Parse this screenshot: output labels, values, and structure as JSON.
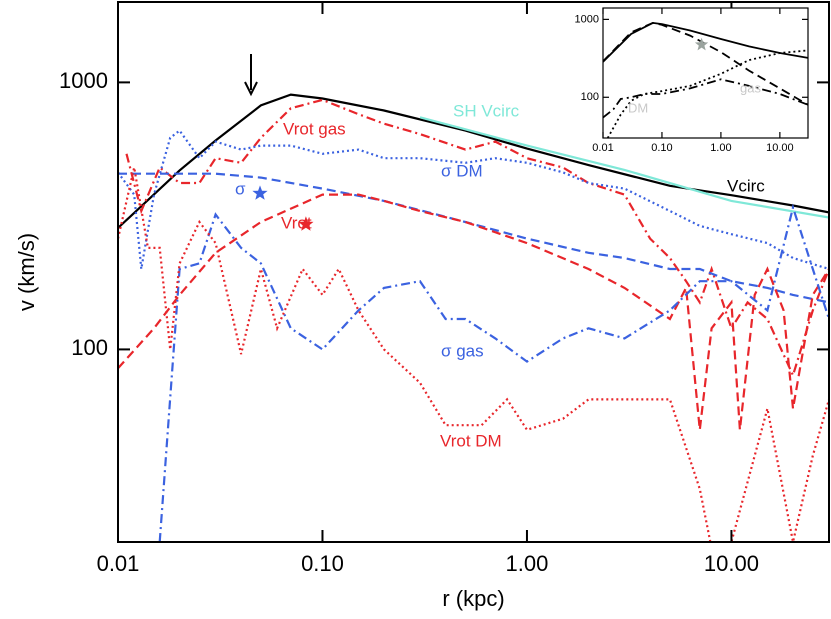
{
  "chart_data": [
    {
      "type": "line",
      "xlabel": "r (kpc)",
      "ylabel": "v (km/s)",
      "xlog": true,
      "ylog": true,
      "xlim": [
        0.01,
        30
      ],
      "ylim": [
        19,
        2000
      ],
      "xticks": [
        {
          "value": 0.01,
          "label": "0.01"
        },
        {
          "value": 0.1,
          "label": "0.10"
        },
        {
          "value": 1,
          "label": "1.00"
        },
        {
          "value": 10,
          "label": "10.00"
        }
      ],
      "yticks": [
        100,
        1000
      ],
      "series": [
        {
          "name": "Vcirc",
          "color": "#000000",
          "dash": "solid",
          "x": [
            0.01,
            0.02,
            0.03,
            0.05,
            0.07,
            0.1,
            0.2,
            0.5,
            1,
            2,
            5,
            10,
            20,
            30
          ],
          "values": [
            285,
            468,
            606,
            820,
            900,
            870,
            785,
            660,
            565,
            490,
            410,
            378,
            346,
            326
          ]
        },
        {
          "name": "SH Vcirc",
          "color": "#7fe8d8",
          "dash": "solid",
          "x": [
            0.3,
            1,
            3,
            10,
            30
          ],
          "values": [
            740,
            580,
            470,
            360,
            312
          ]
        },
        {
          "name": "Vrot gas",
          "color": "#e8262b",
          "dash": "dashdot",
          "x": [
            0.011,
            0.013,
            0.016,
            0.02,
            0.025,
            0.03,
            0.04,
            0.05,
            0.07,
            0.1,
            0.15,
            0.2,
            0.3,
            0.5,
            0.7,
            1,
            1.5,
            2,
            3,
            4,
            5,
            6,
            7,
            8,
            10,
            12,
            15,
            20,
            25,
            30
          ],
          "values": [
            540,
            330,
            480,
            420,
            420,
            520,
            500,
            620,
            800,
            860,
            760,
            700,
            640,
            560,
            600,
            520,
            480,
            420,
            380,
            260,
            220,
            180,
            150,
            200,
            120,
            150,
            130,
            80,
            140,
            200
          ]
        },
        {
          "name": "σ DM",
          "color": "#3b62e0",
          "dash": "dot",
          "x": [
            0.01,
            0.012,
            0.013,
            0.015,
            0.018,
            0.02,
            0.025,
            0.03,
            0.04,
            0.05,
            0.07,
            0.1,
            0.15,
            0.2,
            0.3,
            0.5,
            0.7,
            1,
            1.5,
            2,
            3,
            5,
            7,
            10,
            15,
            20,
            30
          ],
          "values": [
            460,
            380,
            200,
            380,
            620,
            660,
            520,
            600,
            560,
            580,
            580,
            540,
            560,
            520,
            520,
            500,
            520,
            500,
            460,
            420,
            400,
            330,
            290,
            270,
            250,
            220,
            200
          ]
        },
        {
          "name": "σ",
          "color": "#3b62e0",
          "dash": "dash",
          "x": [
            0.01,
            0.03,
            0.05,
            0.1,
            0.2,
            0.5,
            1,
            2,
            3,
            5,
            7,
            10,
            15,
            20,
            30
          ],
          "values": [
            455,
            455,
            440,
            400,
            360,
            300,
            260,
            230,
            220,
            200,
            200,
            180,
            170,
            160,
            150
          ]
        },
        {
          "name": "Vrot",
          "color": "#e8262b",
          "dash": "dash",
          "x": [
            0.01,
            0.015,
            0.02,
            0.03,
            0.05,
            0.1,
            0.15,
            0.2,
            0.3,
            0.5,
            1,
            2,
            3,
            5,
            6,
            7,
            8,
            10,
            11,
            13,
            15,
            18,
            20,
            25,
            30
          ],
          "values": [
            85,
            120,
            160,
            230,
            300,
            380,
            380,
            360,
            330,
            300,
            250,
            200,
            170,
            130,
            170,
            50,
            120,
            150,
            50,
            160,
            200,
            140,
            60,
            160,
            200
          ]
        },
        {
          "name": "σ gas",
          "color": "#3b62e0",
          "dash": "dashdot",
          "x": [
            0.016,
            0.02,
            0.025,
            0.03,
            0.04,
            0.05,
            0.07,
            0.1,
            0.15,
            0.2,
            0.3,
            0.4,
            0.5,
            0.7,
            1,
            1.5,
            2,
            3,
            5,
            7,
            10,
            15,
            20,
            25,
            30
          ],
          "values": [
            19,
            200,
            210,
            320,
            240,
            210,
            120,
            100,
            140,
            170,
            180,
            130,
            130,
            110,
            90,
            110,
            120,
            110,
            140,
            180,
            180,
            140,
            340,
            200,
            130
          ]
        },
        {
          "name": "Vrot DM",
          "color": "#e8262b",
          "dash": "dot",
          "x": [
            0.01,
            0.012,
            0.014,
            0.016,
            0.018,
            0.02,
            0.025,
            0.03,
            0.04,
            0.05,
            0.06,
            0.08,
            0.1,
            0.12,
            0.15,
            0.2,
            0.3,
            0.4,
            0.6,
            0.8,
            1,
            1.5,
            2,
            5,
            7,
            8,
            10,
            15,
            20,
            25,
            30
          ],
          "values": [
            260,
            480,
            240,
            240,
            100,
            210,
            300,
            250,
            96,
            200,
            120,
            200,
            160,
            200,
            140,
            100,
            75,
            52,
            52,
            65,
            50,
            55,
            65,
            65,
            30,
            18,
            19,
            60,
            19,
            40,
            65
          ]
        }
      ],
      "points": [
        {
          "name": "σ",
          "x": 0.0495,
          "y": 384,
          "color": "#3b62e0"
        },
        {
          "name": "Vrot",
          "x": 0.083,
          "y": 294,
          "color": "#e8262b"
        }
      ]
    },
    {
      "type": "line",
      "xlog": true,
      "ylog": true,
      "xlim": [
        0.01,
        30
      ],
      "ylim": [
        30,
        1400
      ],
      "xticks": [
        {
          "value": 0.01,
          "label": "0.01"
        },
        {
          "value": 0.1,
          "label": "0.10"
        },
        {
          "value": 1,
          "label": "1.00"
        },
        {
          "value": 10,
          "label": "10.00"
        }
      ],
      "yticks": [
        100,
        1000
      ],
      "series": [
        {
          "color": "#000000",
          "dash": "solid",
          "x": [
            0.01,
            0.03,
            0.07,
            0.1,
            0.3,
            1,
            3,
            10,
            30
          ],
          "values": [
            285,
            650,
            900,
            870,
            720,
            560,
            450,
            370,
            320
          ]
        },
        {
          "color": "#000000",
          "dash": "dash",
          "x": [
            0.01,
            0.03,
            0.07,
            0.1,
            0.3,
            1,
            3,
            10,
            30
          ],
          "values": [
            290,
            680,
            900,
            850,
            620,
            380,
            220,
            130,
            80
          ]
        },
        {
          "name": "gas",
          "color": "#000000",
          "dash": "dashdot",
          "x": [
            0.01,
            0.015,
            0.02,
            0.03,
            0.05,
            0.1,
            0.3,
            1,
            3,
            10,
            20,
            30
          ],
          "values": [
            55,
            70,
            95,
            100,
            110,
            110,
            130,
            170,
            140,
            110,
            90,
            80
          ]
        },
        {
          "name": "DM",
          "color": "#000000",
          "dash": "dot",
          "x": [
            0.012,
            0.02,
            0.03,
            0.05,
            0.1,
            0.3,
            1,
            3,
            10,
            30
          ],
          "values": [
            30,
            60,
            90,
            110,
            120,
            140,
            200,
            300,
            370,
            400
          ]
        }
      ],
      "points": [
        {
          "x": 0.47,
          "y": 473,
          "color": "#9aa39e"
        }
      ]
    }
  ]
}
